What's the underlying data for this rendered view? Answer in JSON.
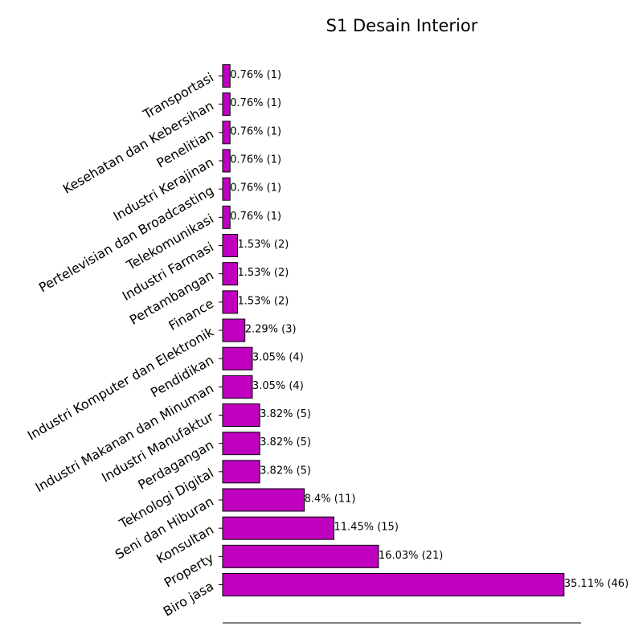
{
  "chart_data": {
    "type": "bar",
    "orientation": "horizontal",
    "title": "S1 Desain Interior",
    "xlabel": "",
    "ylabel": "",
    "grid": false,
    "bar_color": "#bf00bf",
    "bar_edge_color": "#000000",
    "categories": [
      "Biro jasa",
      "Property",
      "Konsultan",
      "Seni dan Hiburan",
      "Teknologi Digital",
      "Perdagangan",
      "Industri Manufaktur",
      "Industri Makanan dan Minuman",
      "Pendidikan",
      "Industri Komputer dan Elektronik",
      "Finance",
      "Pertambangan",
      "Industri Farmasi",
      "Telekomunikasi",
      "Pertelevisian dan Broadcasting",
      "Industri Kerajinan",
      "Penelitian",
      "Kesehatan dan Kebersihan",
      "Transportasi"
    ],
    "values": [
      46,
      21,
      15,
      11,
      5,
      5,
      5,
      4,
      4,
      3,
      2,
      2,
      2,
      1,
      1,
      1,
      1,
      1,
      1
    ],
    "labels": [
      "35.11% (46)",
      "16.03% (21)",
      "11.45% (15)",
      "8.4% (11)",
      "3.82% (5)",
      "3.82% (5)",
      "3.82% (5)",
      "3.05% (4)",
      "3.05% (4)",
      "2.29% (3)",
      "1.53% (2)",
      "1.53% (2)",
      "1.53% (2)",
      "0.76% (1)",
      "0.76% (1)",
      "0.76% (1)",
      "0.76% (1)",
      "0.76% (1)",
      "0.76% (1)"
    ],
    "xlim": [
      0,
      48.3
    ]
  }
}
